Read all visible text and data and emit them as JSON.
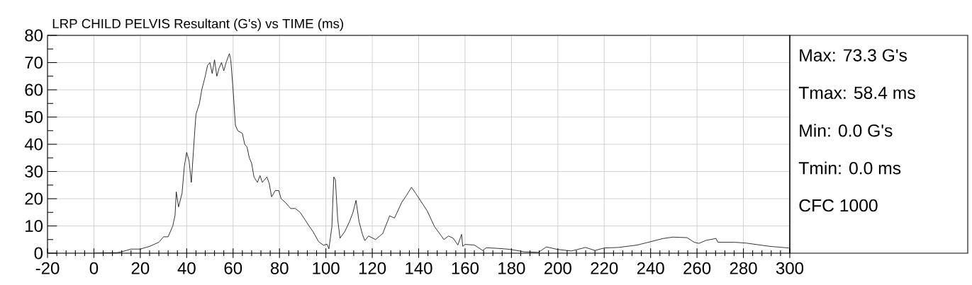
{
  "chart_data": {
    "type": "line",
    "title": "LRP CHILD PELVIS  Resultant (G's) vs TIME (ms)",
    "xlim": [
      -20,
      300
    ],
    "ylim": [
      0,
      80
    ],
    "xticks": [
      -20,
      0,
      20,
      40,
      60,
      80,
      100,
      120,
      140,
      160,
      180,
      200,
      220,
      240,
      260,
      280,
      300
    ],
    "yticks": [
      0,
      10,
      20,
      30,
      40,
      50,
      60,
      70,
      80
    ],
    "grid": true,
    "line_style": "solid",
    "annotations": [
      "Max: 73.3 G's",
      "Tmax: 58.4 ms",
      "Min: 0.0 G's",
      "Tmin: 0.0 ms",
      "CFC 1000"
    ],
    "series": [
      {
        "color": "#000000",
        "x": [
          0,
          10,
          12,
          16,
          20,
          24,
          28,
          30,
          32,
          34,
          35,
          35.5,
          36.5,
          38,
          39,
          40,
          41,
          42,
          43.5,
          44,
          45.5,
          46.5,
          48,
          49,
          50,
          51,
          52,
          53,
          54,
          55,
          56,
          57,
          58.4,
          59,
          60,
          61,
          62,
          64,
          65,
          66,
          67,
          68,
          69,
          70.5,
          71.6,
          72.6,
          74.6,
          75.6,
          76.6,
          78.2,
          79.7,
          80.7,
          82.7,
          84.8,
          86.8,
          88.9,
          90.9,
          92.9,
          94.4,
          96.9,
          99.0,
          100.5,
          101.3,
          102.6,
          103.4,
          104.1,
          105.1,
          106.1,
          108.2,
          110.2,
          111.7,
          113.0,
          114.3,
          115.8,
          116.8,
          118.4,
          121.4,
          124.5,
          127.5,
          129.6,
          132.6,
          134.6,
          136.9,
          138.7,
          140.7,
          143.7,
          146.8,
          149.8,
          150.9,
          152.9,
          154.9,
          156.9,
          158.5,
          159,
          160,
          164,
          167.6,
          169.2,
          175.3,
          179.4,
          185.5,
          191.6,
          195.1,
          199.7,
          205.8,
          211.9,
          216,
          220,
          226.1,
          234.3,
          240.4,
          245.5,
          249.6,
          255.7,
          258.8,
          260.8,
          263.9,
          268.2,
          269,
          276.1,
          281.2,
          291.4,
          299.6
        ],
        "values": [
          0,
          0.2,
          0.5,
          1.5,
          1.5,
          2.5,
          4,
          6,
          6,
          10,
          14,
          22.5,
          17,
          22,
          32,
          37,
          34,
          26,
          45,
          51,
          55,
          60,
          65,
          69,
          70,
          66,
          71,
          65,
          68,
          70,
          67,
          70,
          73.3,
          71,
          60,
          47,
          45,
          44,
          40,
          39,
          35,
          33,
          28,
          26,
          28.5,
          26,
          28,
          25.5,
          20.7,
          23,
          23,
          20,
          18.5,
          16.4,
          16.4,
          15,
          12.4,
          9.8,
          8,
          4.2,
          2.9,
          3.3,
          1.6,
          9.8,
          28,
          27,
          12.4,
          5.5,
          8,
          11.6,
          15,
          19.4,
          11.6,
          6.8,
          4.6,
          6.3,
          5,
          7.2,
          13.7,
          12.9,
          18.5,
          21,
          24.2,
          22,
          19.4,
          15.5,
          9.8,
          6.3,
          5,
          6.3,
          5.5,
          3,
          6.9,
          2.5,
          3.2,
          3,
          1,
          2,
          1.7,
          1.4,
          0.5,
          0.3,
          2.3,
          1.4,
          0.8,
          2.1,
          1,
          1.9,
          2.1,
          3,
          4.3,
          5.4,
          5.9,
          5.7,
          4,
          3.6,
          4.7,
          5.4,
          4,
          4,
          3.7,
          2.5,
          1.9
        ]
      }
    ]
  }
}
